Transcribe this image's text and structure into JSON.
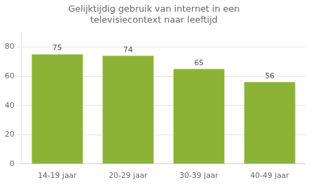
{
  "chart_data": {
    "type": "bar",
    "title": "Gelijktijdig gebruik van internet in een\ntelevisiecontext naar leeftijd",
    "categories": [
      "14-19 jaar",
      "20-29 jaar",
      "30-39 jaar",
      "40-49 jaar"
    ],
    "values": [
      75,
      74,
      65,
      56
    ],
    "color": "#8DB336",
    "ylim": [
      0,
      90
    ],
    "yticks": [
      0,
      20,
      40,
      60,
      80
    ],
    "grid": true,
    "data_labels": true
  }
}
